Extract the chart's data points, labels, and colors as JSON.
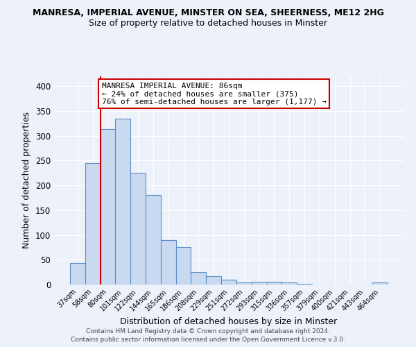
{
  "title": "MANRESA, IMPERIAL AVENUE, MINSTER ON SEA, SHEERNESS, ME12 2HG",
  "subtitle": "Size of property relative to detached houses in Minster",
  "xlabel": "Distribution of detached houses by size in Minster",
  "ylabel": "Number of detached properties",
  "bar_labels": [
    "37sqm",
    "58sqm",
    "80sqm",
    "101sqm",
    "122sqm",
    "144sqm",
    "165sqm",
    "186sqm",
    "208sqm",
    "229sqm",
    "251sqm",
    "272sqm",
    "293sqm",
    "315sqm",
    "336sqm",
    "357sqm",
    "379sqm",
    "400sqm",
    "421sqm",
    "443sqm",
    "464sqm"
  ],
  "bar_values": [
    43,
    245,
    313,
    335,
    225,
    180,
    90,
    75,
    25,
    17,
    10,
    4,
    6,
    6,
    4,
    2,
    0,
    0,
    0,
    0,
    4
  ],
  "bar_color": "#c9d9f0",
  "bar_edge_color": "#5b8dc8",
  "background_color": "#edf2fa",
  "grid_color": "#ffffff",
  "vline_index": 2,
  "vline_color": "#cc0000",
  "annotation_title": "MANRESA IMPERIAL AVENUE: 86sqm",
  "annotation_line1": "← 24% of detached houses are smaller (375)",
  "annotation_line2": "76% of semi-detached houses are larger (1,177) →",
  "annotation_box_color": "#cc0000",
  "ylim": [
    0,
    420
  ],
  "yticks": [
    0,
    50,
    100,
    150,
    200,
    250,
    300,
    350,
    400
  ],
  "footer1": "Contains HM Land Registry data © Crown copyright and database right 2024.",
  "footer2": "Contains public sector information licensed under the Open Government Licence v.3.0."
}
